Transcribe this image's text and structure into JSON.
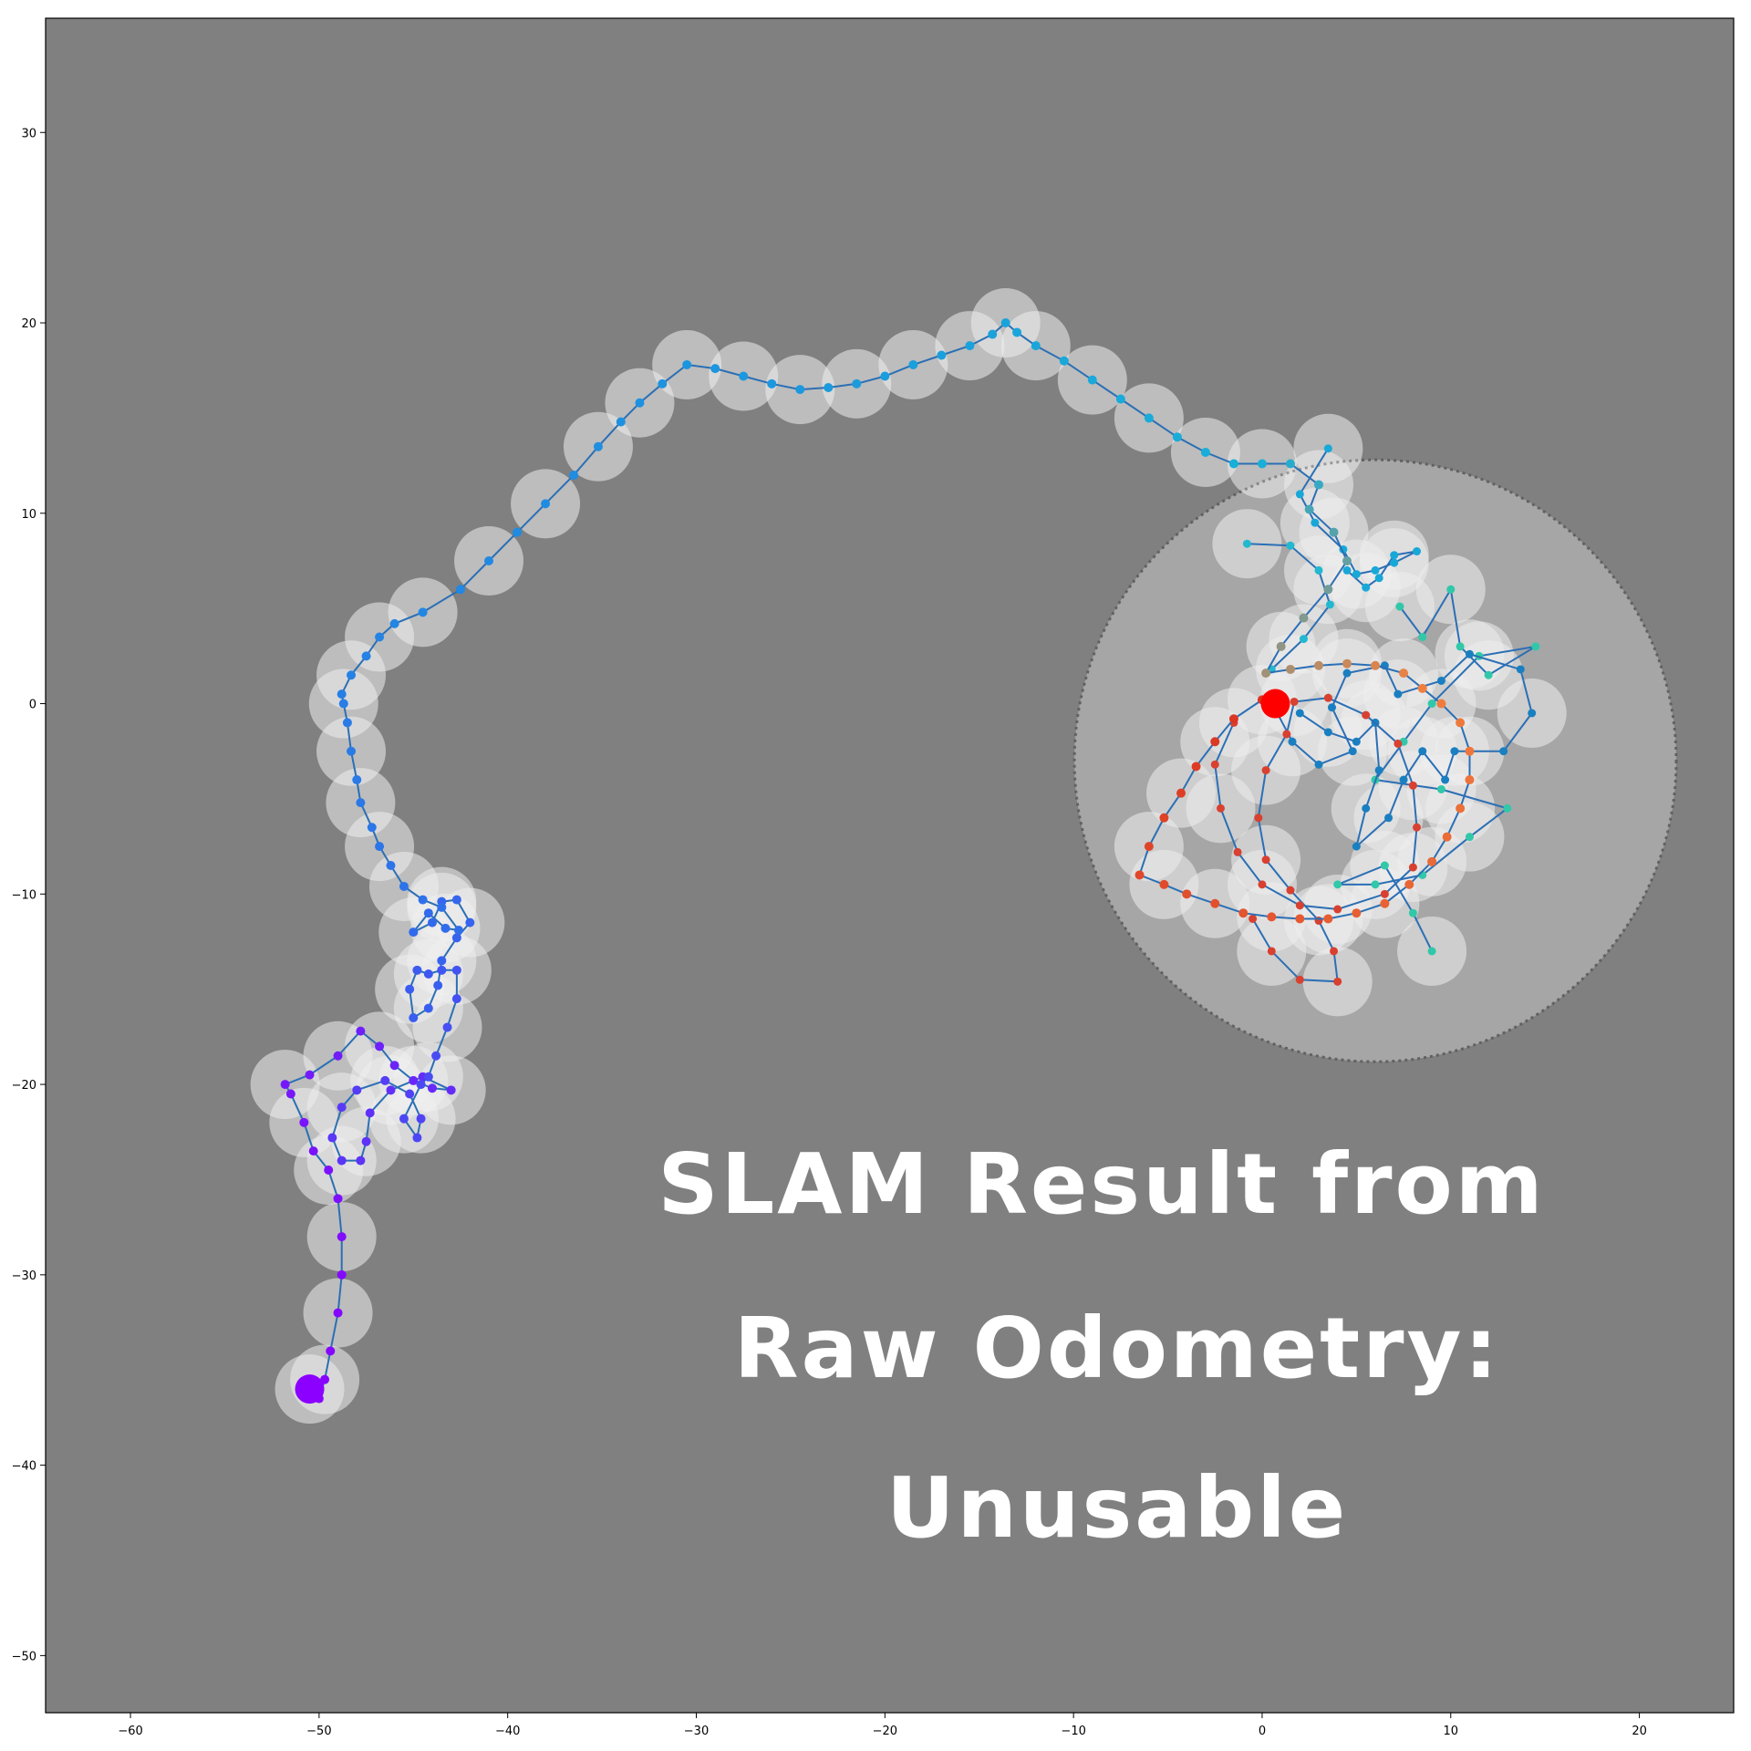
{
  "chart_data": {
    "type": "line",
    "title": "",
    "xlabel": "",
    "ylabel": "",
    "xlim": [
      -64.5,
      25
    ],
    "ylim": [
      -53,
      36
    ],
    "xticks": [
      -60,
      -50,
      -40,
      -30,
      -20,
      -10,
      0,
      10,
      20
    ],
    "yticks": [
      -50,
      -40,
      -30,
      -20,
      -10,
      0,
      10,
      20,
      30
    ],
    "grid": false,
    "legend": "none",
    "colors": {
      "background": "#808080",
      "map": "#eeeeee",
      "map_edge": "#2a2a2a",
      "start_marker": "#8b00ff",
      "end_marker": "#ff0000",
      "path_line": "#2b6fb5"
    },
    "overlay_text": [
      "SLAM Result from",
      "Raw Odometry:",
      "Unusable"
    ],
    "start_point": {
      "x": -50.5,
      "y": -36
    },
    "end_point": {
      "x": 0.7,
      "y": 0
    },
    "trajectory": [
      {
        "x": -50.5,
        "y": -36
      },
      {
        "x": -50,
        "y": -36.5
      },
      {
        "x": -49.7,
        "y": -35.5
      },
      {
        "x": -49.4,
        "y": -34
      },
      {
        "x": -49,
        "y": -32
      },
      {
        "x": -48.8,
        "y": -30
      },
      {
        "x": -48.8,
        "y": -28
      },
      {
        "x": -49,
        "y": -26
      },
      {
        "x": -49.5,
        "y": -24.5
      },
      {
        "x": -50.3,
        "y": -23.5
      },
      {
        "x": -50.8,
        "y": -22
      },
      {
        "x": -51.5,
        "y": -20.5
      },
      {
        "x": -51.8,
        "y": -20
      },
      {
        "x": -50.5,
        "y": -19.5
      },
      {
        "x": -49,
        "y": -18.5
      },
      {
        "x": -47.8,
        "y": -17.2
      },
      {
        "x": -46.8,
        "y": -18
      },
      {
        "x": -46,
        "y": -19
      },
      {
        "x": -45,
        "y": -19.8
      },
      {
        "x": -44,
        "y": -20.2
      },
      {
        "x": -43,
        "y": -20.3
      },
      {
        "x": -44.5,
        "y": -19.6
      },
      {
        "x": -46.2,
        "y": -20.3
      },
      {
        "x": -47.3,
        "y": -21.5
      },
      {
        "x": -47.5,
        "y": -23
      },
      {
        "x": -47.8,
        "y": -24
      },
      {
        "x": -48.8,
        "y": -24
      },
      {
        "x": -49.3,
        "y": -22.8
      },
      {
        "x": -48.8,
        "y": -21.2
      },
      {
        "x": -48,
        "y": -20.3
      },
      {
        "x": -46.5,
        "y": -19.8
      },
      {
        "x": -45.2,
        "y": -20.5
      },
      {
        "x": -44.6,
        "y": -21.8
      },
      {
        "x": -44.8,
        "y": -22.8
      },
      {
        "x": -45.5,
        "y": -21.8
      },
      {
        "x": -44.6,
        "y": -20
      },
      {
        "x": -44.2,
        "y": -19.6
      },
      {
        "x": -43.8,
        "y": -18.5
      },
      {
        "x": -43.2,
        "y": -17
      },
      {
        "x": -42.7,
        "y": -15.5
      },
      {
        "x": -42.7,
        "y": -14
      },
      {
        "x": -43.5,
        "y": -14
      },
      {
        "x": -44.2,
        "y": -14.2
      },
      {
        "x": -44.8,
        "y": -14
      },
      {
        "x": -45.2,
        "y": -15
      },
      {
        "x": -45,
        "y": -16.5
      },
      {
        "x": -44.2,
        "y": -16
      },
      {
        "x": -43.7,
        "y": -14.8
      },
      {
        "x": -43.5,
        "y": -13.5
      },
      {
        "x": -42.7,
        "y": -12.3
      },
      {
        "x": -42,
        "y": -11.5
      },
      {
        "x": -42.7,
        "y": -10.3
      },
      {
        "x": -43.5,
        "y": -10.4
      },
      {
        "x": -44,
        "y": -11.5
      },
      {
        "x": -45,
        "y": -12
      },
      {
        "x": -44.2,
        "y": -11
      },
      {
        "x": -43.3,
        "y": -11.8
      },
      {
        "x": -42.6,
        "y": -11.9
      },
      {
        "x": -43.5,
        "y": -10.7
      },
      {
        "x": -44.5,
        "y": -10.3
      },
      {
        "x": -45.5,
        "y": -9.6
      },
      {
        "x": -46.2,
        "y": -8.5
      },
      {
        "x": -46.8,
        "y": -7.5
      },
      {
        "x": -47.2,
        "y": -6.5
      },
      {
        "x": -47.8,
        "y": -5.2
      },
      {
        "x": -48,
        "y": -4
      },
      {
        "x": -48.3,
        "y": -2.5
      },
      {
        "x": -48.5,
        "y": -1
      },
      {
        "x": -48.7,
        "y": 0
      },
      {
        "x": -48.8,
        "y": 0.5
      },
      {
        "x": -48.3,
        "y": 1.5
      },
      {
        "x": -47.5,
        "y": 2.5
      },
      {
        "x": -46.8,
        "y": 3.5
      },
      {
        "x": -46,
        "y": 4.2
      },
      {
        "x": -44.5,
        "y": 4.8
      },
      {
        "x": -42.5,
        "y": 6
      },
      {
        "x": -41,
        "y": 7.5
      },
      {
        "x": -39.5,
        "y": 9
      },
      {
        "x": -38,
        "y": 10.5
      },
      {
        "x": -36.5,
        "y": 12
      },
      {
        "x": -35.2,
        "y": 13.5
      },
      {
        "x": -34,
        "y": 14.8
      },
      {
        "x": -33,
        "y": 15.8
      },
      {
        "x": -31.8,
        "y": 16.8
      },
      {
        "x": -30.5,
        "y": 17.8
      },
      {
        "x": -29,
        "y": 17.6
      },
      {
        "x": -27.5,
        "y": 17.2
      },
      {
        "x": -26,
        "y": 16.8
      },
      {
        "x": -24.5,
        "y": 16.5
      },
      {
        "x": -23,
        "y": 16.6
      },
      {
        "x": -21.5,
        "y": 16.8
      },
      {
        "x": -20,
        "y": 17.2
      },
      {
        "x": -18.5,
        "y": 17.8
      },
      {
        "x": -17,
        "y": 18.3
      },
      {
        "x": -15.5,
        "y": 18.8
      },
      {
        "x": -14.3,
        "y": 19.4
      },
      {
        "x": -13.6,
        "y": 20
      },
      {
        "x": -13,
        "y": 19.5
      },
      {
        "x": -12,
        "y": 18.8
      },
      {
        "x": -10.5,
        "y": 18
      },
      {
        "x": -9,
        "y": 17
      },
      {
        "x": -7.5,
        "y": 16
      },
      {
        "x": -6,
        "y": 15
      },
      {
        "x": -4.5,
        "y": 14
      },
      {
        "x": -3,
        "y": 13.2
      },
      {
        "x": -1.5,
        "y": 12.6
      },
      {
        "x": 0,
        "y": 12.6
      },
      {
        "x": 1.5,
        "y": 12.6
      },
      {
        "x": 3,
        "y": 11.5
      },
      {
        "x": 2.5,
        "y": 10.2
      },
      {
        "x": 3.8,
        "y": 9
      },
      {
        "x": 4.5,
        "y": 7.5
      },
      {
        "x": 3.5,
        "y": 6
      },
      {
        "x": 2.2,
        "y": 4.5
      },
      {
        "x": 1,
        "y": 3
      },
      {
        "x": 0.2,
        "y": 1.6
      },
      {
        "x": 1.5,
        "y": 1.8
      },
      {
        "x": 3,
        "y": 2
      },
      {
        "x": 4.5,
        "y": 2.1
      },
      {
        "x": 6,
        "y": 2
      },
      {
        "x": 7.5,
        "y": 1.6
      },
      {
        "x": 8.5,
        "y": 0.8
      },
      {
        "x": 9.5,
        "y": 0
      },
      {
        "x": 10.5,
        "y": -1
      },
      {
        "x": 11,
        "y": -2.5
      },
      {
        "x": 11,
        "y": -4
      },
      {
        "x": 10.5,
        "y": -5.5
      },
      {
        "x": 9.8,
        "y": -7
      },
      {
        "x": 9,
        "y": -8.3
      },
      {
        "x": 7.8,
        "y": -9.5
      },
      {
        "x": 6.5,
        "y": -10.5
      },
      {
        "x": 5,
        "y": -11
      },
      {
        "x": 3.5,
        "y": -11.3
      },
      {
        "x": 2,
        "y": -11.3
      },
      {
        "x": 0.5,
        "y": -11.2
      },
      {
        "x": -1,
        "y": -11
      },
      {
        "x": -2.5,
        "y": -10.5
      },
      {
        "x": -4,
        "y": -10
      },
      {
        "x": -5.2,
        "y": -9.5
      },
      {
        "x": -6.5,
        "y": -9
      },
      {
        "x": -6,
        "y": -7.5
      },
      {
        "x": -5.2,
        "y": -6
      },
      {
        "x": -4.3,
        "y": -4.7
      },
      {
        "x": -3.5,
        "y": -3.3
      },
      {
        "x": -2.5,
        "y": -2
      },
      {
        "x": -1.5,
        "y": -0.8
      },
      {
        "x": 0,
        "y": 0.2
      },
      {
        "x": 0.7,
        "y": 0
      }
    ],
    "cluster_tracks": [
      [
        {
          "x": 3.5,
          "y": 13.4
        },
        {
          "x": 2,
          "y": 11
        },
        {
          "x": 2.8,
          "y": 9.5
        },
        {
          "x": 4.3,
          "y": 8.1
        },
        {
          "x": 5,
          "y": 6.8
        },
        {
          "x": 6,
          "y": 7
        },
        {
          "x": 7,
          "y": 7.4
        },
        {
          "x": 8.2,
          "y": 8
        },
        {
          "x": 7,
          "y": 7.8
        },
        {
          "x": 6.2,
          "y": 6.6
        },
        {
          "x": 5.5,
          "y": 6.1
        },
        {
          "x": 4.5,
          "y": 7
        }
      ],
      [
        {
          "x": -0.8,
          "y": 8.4
        },
        {
          "x": 1.5,
          "y": 8.3
        },
        {
          "x": 3,
          "y": 7
        },
        {
          "x": 3.6,
          "y": 5.2
        },
        {
          "x": 2.2,
          "y": 3.4
        },
        {
          "x": 0.5,
          "y": 1.8
        }
      ],
      [
        {
          "x": 7.3,
          "y": 5.1
        },
        {
          "x": 8.5,
          "y": 3.5
        },
        {
          "x": 10,
          "y": 6
        },
        {
          "x": 10.5,
          "y": 3
        },
        {
          "x": 12,
          "y": 1.5
        },
        {
          "x": 14.5,
          "y": 3
        },
        {
          "x": 11.5,
          "y": 2.5
        },
        {
          "x": 9,
          "y": 0
        },
        {
          "x": 7.5,
          "y": -2
        },
        {
          "x": 6,
          "y": -4
        },
        {
          "x": 9.5,
          "y": -4.5
        },
        {
          "x": 13,
          "y": -5.5
        },
        {
          "x": 11,
          "y": -7
        },
        {
          "x": 8.5,
          "y": -9
        },
        {
          "x": 6,
          "y": -9.5
        },
        {
          "x": 4,
          "y": -9.5
        },
        {
          "x": 6.5,
          "y": -8.5
        },
        {
          "x": 8,
          "y": -11
        },
        {
          "x": 9,
          "y": -13
        }
      ],
      [
        {
          "x": 2,
          "y": -0.5
        },
        {
          "x": 3.5,
          "y": -1.5
        },
        {
          "x": 5,
          "y": -2
        },
        {
          "x": 6,
          "y": -1
        },
        {
          "x": 6.2,
          "y": -3.5
        },
        {
          "x": 5.5,
          "y": -5.5
        },
        {
          "x": 5,
          "y": -7.5
        },
        {
          "x": 6.7,
          "y": -6
        },
        {
          "x": 7.5,
          "y": -4
        },
        {
          "x": 8.5,
          "y": -2.5
        },
        {
          "x": 9.7,
          "y": -4
        },
        {
          "x": 10.2,
          "y": -2.5
        },
        {
          "x": 12.8,
          "y": -2.5
        },
        {
          "x": 14.3,
          "y": -0.5
        },
        {
          "x": 13.7,
          "y": 1.8
        },
        {
          "x": 11,
          "y": 2.6
        },
        {
          "x": 9.5,
          "y": 1.2
        },
        {
          "x": 7.2,
          "y": 0.5
        },
        {
          "x": 6.5,
          "y": 2
        },
        {
          "x": 4.5,
          "y": 1.6
        },
        {
          "x": 3.7,
          "y": -0.2
        },
        {
          "x": 4.8,
          "y": -2.5
        },
        {
          "x": 3,
          "y": -3.2
        },
        {
          "x": 1.6,
          "y": -2
        },
        {
          "x": 0.7,
          "y": -0.3
        }
      ],
      [
        {
          "x": -1.5,
          "y": -1
        },
        {
          "x": -2.5,
          "y": -3.2
        },
        {
          "x": -2.2,
          "y": -5.5
        },
        {
          "x": -1.3,
          "y": -7.8
        },
        {
          "x": 0,
          "y": -9.5
        },
        {
          "x": 2,
          "y": -10.6
        },
        {
          "x": 4,
          "y": -10.8
        },
        {
          "x": 6.5,
          "y": -10
        },
        {
          "x": 8,
          "y": -8.6
        },
        {
          "x": 8.2,
          "y": -6.5
        },
        {
          "x": 8,
          "y": -4.3
        },
        {
          "x": 7.2,
          "y": -2.1
        },
        {
          "x": 5.5,
          "y": -0.6
        },
        {
          "x": 3.5,
          "y": 0.3
        },
        {
          "x": 1.7,
          "y": 0.1
        },
        {
          "x": 1.3,
          "y": -1.6
        },
        {
          "x": 0.2,
          "y": -3.5
        },
        {
          "x": -0.2,
          "y": -6
        },
        {
          "x": 0.2,
          "y": -8.2
        },
        {
          "x": 1.5,
          "y": -9.8
        },
        {
          "x": 3,
          "y": -11.4
        },
        {
          "x": 3.8,
          "y": -13
        },
        {
          "x": 4,
          "y": -14.6
        },
        {
          "x": 2,
          "y": -14.5
        },
        {
          "x": 0.5,
          "y": -13
        },
        {
          "x": -0.5,
          "y": -11.3
        }
      ]
    ]
  }
}
